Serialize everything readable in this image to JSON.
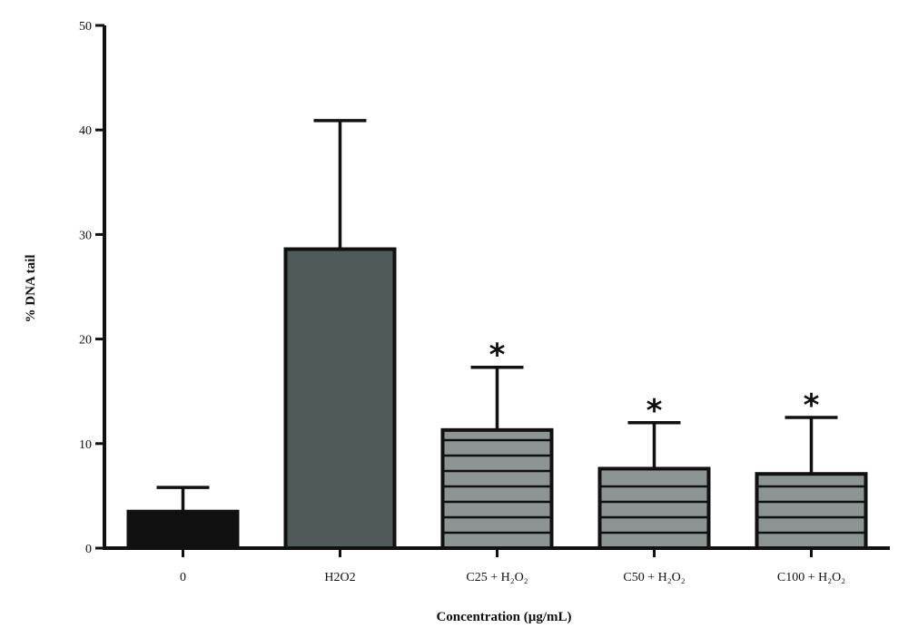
{
  "chart_data": {
    "type": "bar",
    "title": "",
    "xlabel": "Concentration (µg/mL)",
    "ylabel": "% DNA tail",
    "ylim": [
      0,
      50
    ],
    "yticks": [
      0,
      10,
      20,
      30,
      40,
      50
    ],
    "categories": [
      "0",
      "H2O2",
      "C25 + H₂O₂",
      "C50 + H₂O₂",
      "C100 + H₂O₂"
    ],
    "values": [
      3.5,
      28.6,
      11.3,
      7.6,
      7.1
    ],
    "error_upper": [
      5.8,
      40.9,
      17.3,
      12.0,
      12.5
    ],
    "significance": [
      "",
      "",
      "*",
      "*",
      "*"
    ],
    "fills": [
      "#111111",
      "#505a5a",
      "#8c9494",
      "#8c9494",
      "#8c9494"
    ],
    "striped": [
      false,
      false,
      true,
      true,
      true
    ],
    "grid": false,
    "legend": "none"
  }
}
